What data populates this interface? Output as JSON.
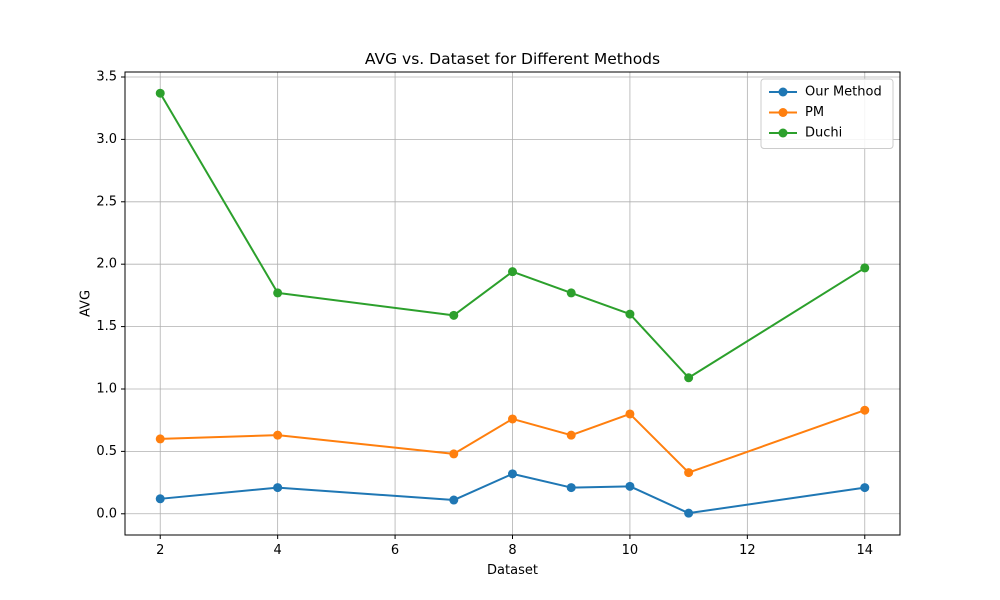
{
  "chart_data": {
    "type": "line",
    "title": "AVG vs. Dataset for Different Methods",
    "xlabel": "Dataset",
    "ylabel": "AVG",
    "x": [
      2,
      4,
      7,
      8,
      9,
      10,
      11,
      14
    ],
    "xlim": [
      1.4,
      14.6
    ],
    "ylim": [
      -0.17,
      3.54
    ],
    "xticks": [
      2,
      4,
      6,
      8,
      10,
      12,
      14
    ],
    "yticks": [
      0.0,
      0.5,
      1.0,
      1.5,
      2.0,
      2.5,
      3.0,
      3.5
    ],
    "ytick_labels": [
      "0.0",
      "0.5",
      "1.0",
      "1.5",
      "2.0",
      "2.5",
      "3.0",
      "3.5"
    ],
    "grid": true,
    "legend_position": "top-right",
    "series": [
      {
        "name": "Our Method",
        "color": "#1f77b4",
        "marker": "circle",
        "values": [
          0.12,
          0.21,
          0.11,
          0.32,
          0.21,
          0.22,
          0.005,
          0.21
        ]
      },
      {
        "name": "PM",
        "color": "#ff7f0e",
        "marker": "circle",
        "values": [
          0.6,
          0.63,
          0.48,
          0.76,
          0.63,
          0.8,
          0.33,
          0.83
        ]
      },
      {
        "name": "Duchi",
        "color": "#2ca02c",
        "marker": "circle",
        "values": [
          3.37,
          1.77,
          1.59,
          1.94,
          1.77,
          1.6,
          1.09,
          1.97
        ]
      }
    ]
  }
}
